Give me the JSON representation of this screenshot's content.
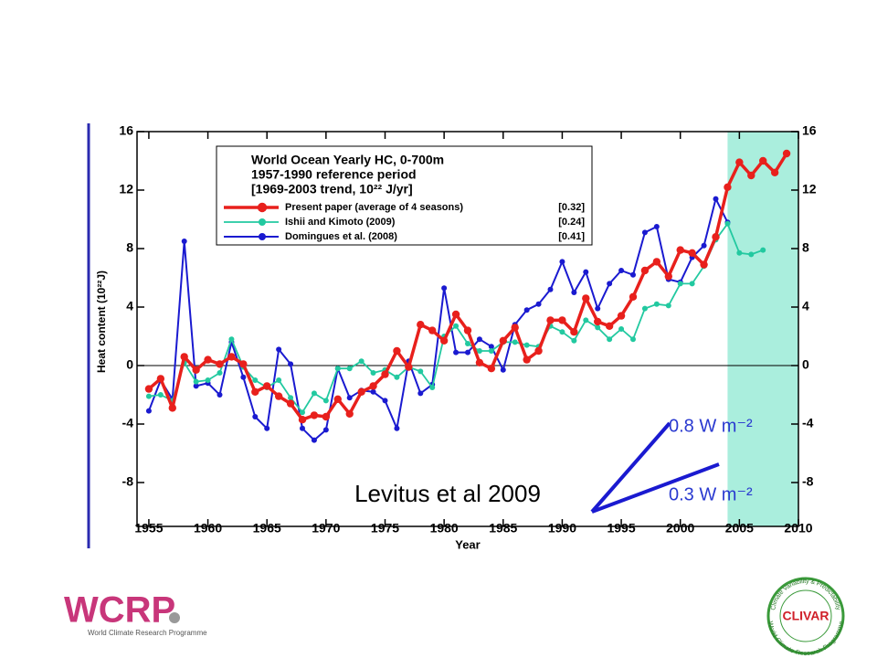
{
  "chart_data": {
    "type": "line",
    "legend_title": [
      "World Ocean Yearly HC, 0-700m",
      "1957-1990 reference period",
      "[1969-2003 trend, 10²² J/yr]"
    ],
    "x_label": "Year",
    "y_label": "Heat content (10²²J)",
    "x": [
      1955,
      1956,
      1957,
      1958,
      1959,
      1960,
      1961,
      1962,
      1963,
      1964,
      1965,
      1966,
      1967,
      1968,
      1969,
      1970,
      1971,
      1972,
      1973,
      1974,
      1975,
      1976,
      1977,
      1978,
      1979,
      1980,
      1981,
      1982,
      1983,
      1984,
      1985,
      1986,
      1987,
      1988,
      1989,
      1990,
      1991,
      1992,
      1993,
      1994,
      1995,
      1996,
      1997,
      1998,
      1999,
      2000,
      2001,
      2002,
      2003,
      2004,
      2005,
      2006,
      2007,
      2008,
      2009
    ],
    "series": [
      {
        "name": "Present paper (average of 4 seasons)",
        "trend": "[0.32]",
        "color": "#e8201c",
        "values": [
          -1.6,
          -0.9,
          -2.9,
          0.6,
          -0.3,
          0.4,
          0.1,
          0.6,
          0.1,
          -1.8,
          -1.4,
          -2.1,
          -2.6,
          -3.7,
          -3.4,
          -3.5,
          -2.3,
          -3.3,
          -1.8,
          -1.4,
          -0.6,
          1.0,
          -0.1,
          2.8,
          2.4,
          1.7,
          3.5,
          2.4,
          0.2,
          -0.2,
          1.7,
          2.6,
          0.4,
          1.0,
          3.1,
          3.1,
          2.3,
          4.6,
          3.0,
          2.7,
          3.4,
          4.7,
          6.5,
          7.1,
          6.1,
          7.9,
          7.7,
          6.9,
          8.8,
          12.2,
          13.9,
          13.0,
          14.0,
          13.2,
          14.5
        ]
      },
      {
        "name": "Ishii and Kimoto (2009)",
        "trend": "[0.24]",
        "color": "#22c9a0",
        "values": [
          -2.1,
          -2.0,
          -2.4,
          0.2,
          -1.1,
          -1.0,
          -0.5,
          1.8,
          -0.1,
          -1.0,
          -1.5,
          -1.0,
          -2.2,
          -3.2,
          -1.9,
          -2.4,
          -0.2,
          -0.2,
          0.3,
          -0.5,
          -0.3,
          -0.8,
          -0.1,
          -0.4,
          -1.5,
          2.0,
          2.7,
          1.5,
          1.0,
          1.0,
          1.6,
          1.6,
          1.4,
          1.3,
          2.7,
          2.3,
          1.7,
          3.1,
          2.6,
          1.8,
          2.5,
          1.8,
          3.9,
          4.2,
          4.1,
          5.6,
          5.6,
          6.8,
          8.6,
          9.7,
          7.7,
          7.6,
          7.9,
          null,
          null
        ]
      },
      {
        "name": "Domingues et al. (2008)",
        "trend": "[0.41]",
        "color": "#1a1ad0",
        "values": [
          -3.1,
          -1.0,
          -2.3,
          8.5,
          -1.4,
          -1.2,
          -2.0,
          1.6,
          -0.8,
          -3.5,
          -4.3,
          1.1,
          0.1,
          -4.3,
          -5.1,
          -4.4,
          -0.2,
          -2.2,
          -1.7,
          -1.8,
          -2.4,
          -4.3,
          0.3,
          -1.9,
          -1.3,
          5.3,
          0.9,
          0.9,
          1.8,
          1.3,
          -0.3,
          2.8,
          3.8,
          4.2,
          5.2,
          7.1,
          5.0,
          6.4,
          3.9,
          5.6,
          6.5,
          6.2,
          9.1,
          9.5,
          5.9,
          5.7,
          7.4,
          8.2,
          11.4,
          9.8,
          null,
          null,
          null,
          null,
          null
        ]
      }
    ],
    "xlim": [
      1954,
      2010
    ],
    "xticks": [
      1955,
      1960,
      1965,
      1970,
      1975,
      1980,
      1985,
      1990,
      1995,
      2000,
      2005,
      2010
    ],
    "ylim": [
      -11,
      16
    ],
    "yticks": [
      -8,
      -4,
      0,
      4,
      8,
      12,
      16
    ],
    "highlight": {
      "xlim": [
        2004,
        2010
      ],
      "color": "#aaeedd"
    },
    "annotations": [
      "Levitus et al 2009",
      "0.8 W m⁻²",
      "0.3 W m⁻²"
    ]
  },
  "logos": {
    "wcrp": "WCRP",
    "wcrp_sub": "World Climate Research Programme",
    "clivar": "CLIVAR",
    "clivar_ring": "Climate Variability & Predictability",
    "clivar_ring2": "World Climate Research Programme"
  }
}
